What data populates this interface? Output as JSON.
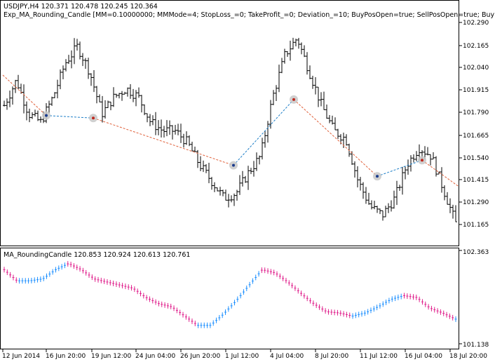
{
  "main_panel": {
    "header_line1": "USDJPY,H4  120.371 120.478 120.245 120.364",
    "header_line2": "Exp_MA_Rounding_Candle [MM=0.10000000; MMMode=4; StopLoss_=0; TakeProfit_=0; Deviation_=10; BuyPosOpen=true; SellPosOpen=true; BuyPosC",
    "price_labels": [
      "102.290",
      "102.165",
      "102.040",
      "101.915",
      "101.790",
      "101.665",
      "101.540",
      "101.415",
      "101.290",
      "101.165"
    ]
  },
  "indicator_panel": {
    "header": "MA_RoundingCandle 120.853 120.924 120.613 120.761",
    "top_label": "102.363",
    "bottom_label": "101.138"
  },
  "time_axis": [
    "12 Jun 2014",
    "16 Jun 20:00",
    "19 Jun 12:00",
    "24 Jun 04:00",
    "26 Jun 20:00",
    "1 Jul 12:00",
    "4 Jul 04:00",
    "8 Jul 20:00",
    "11 Jul 12:00",
    "16 Jul 04:00",
    "18 Jul 20:00"
  ],
  "colors": {
    "bull_indicator": "#1e90ff",
    "bear_indicator": "#e0208c",
    "buy_line": "#1e7fc8",
    "sell_line": "#e0603a",
    "trade_circle": "#c8c8c8"
  },
  "chart_data": {
    "type": "candlestick",
    "price_range": [
      101.09,
      102.4
    ],
    "indicator_range": [
      101.138,
      102.363
    ],
    "close_path": [
      101.9,
      102.05,
      101.85,
      101.8,
      101.95,
      102.15,
      102.25,
      102.1,
      101.85,
      101.95,
      102.0,
      101.95,
      101.8,
      101.75,
      101.75,
      101.68,
      101.55,
      101.45,
      101.35,
      101.38,
      101.5,
      101.6,
      101.95,
      102.2,
      102.3,
      102.1,
      101.9,
      101.75,
      101.7,
      101.45,
      101.3,
      101.25,
      101.35,
      101.55,
      101.65,
      101.6,
      101.4,
      101.2
    ],
    "indicator_values": [
      102.2,
      102.02,
      102.02,
      102.05,
      102.2,
      102.3,
      102.2,
      102.05,
      102.0,
      101.95,
      101.9,
      101.75,
      101.65,
      101.6,
      101.45,
      101.3,
      101.3,
      101.48,
      101.7,
      101.95,
      102.2,
      102.15,
      102.0,
      101.82,
      101.65,
      101.52,
      101.5,
      101.45,
      101.5,
      101.6,
      101.72,
      101.78,
      101.75,
      101.58,
      101.5,
      101.4
    ],
    "trades": [
      {
        "label": "buy",
        "time": "16 Jun 2014",
        "price": 101.84
      },
      {
        "label": "sell",
        "time": "18 Jun 2014",
        "price": 101.825
      },
      {
        "label": "buy",
        "time": "1 Jul 2014",
        "price": 101.545
      },
      {
        "label": "sell",
        "time": "4 Jul 2014",
        "price": 101.935
      },
      {
        "label": "buy",
        "time": "11 Jul 2014",
        "price": 101.48
      },
      {
        "label": "sell",
        "time": "16 Jul 2014",
        "price": 101.575
      }
    ]
  }
}
